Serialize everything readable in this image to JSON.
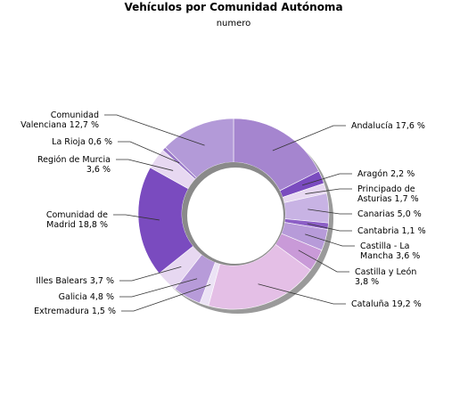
{
  "chart_data": {
    "type": "pie",
    "title": "Vehículos por Comunidad Autónoma",
    "subtitle": "numero",
    "slices": [
      {
        "label": "Andalucía 17,6 %",
        "value": 17.6,
        "color": "#a585cf"
      },
      {
        "label": "Aragón 2,2 %",
        "value": 2.2,
        "color": "#7a4bbf"
      },
      {
        "label": "Principado de Asturias 1,7 %",
        "value": 1.7,
        "color": "#e7d8f1"
      },
      {
        "label": "Canarias 5,0 %",
        "value": 5.0,
        "color": "#c8b3e4"
      },
      {
        "label": "Cantabria 1,1 %",
        "value": 1.1,
        "color": "#8c5fc6"
      },
      {
        "label": "Castilla - La Mancha 3,6 %",
        "value": 3.6,
        "color": "#b79bd9"
      },
      {
        "label": "Castilla y León 3,8 %",
        "value": 3.8,
        "color": "#c99ad8"
      },
      {
        "label": "Cataluña 19,2 %",
        "value": 19.2,
        "color": "#e4bfe6"
      },
      {
        "label": "Extremadura 1,5 %",
        "value": 1.5,
        "color": "#ece3f5"
      },
      {
        "label": "Galicia 4,8 %",
        "value": 4.8,
        "color": "#b79bd9"
      },
      {
        "label": "Illes Balears 3,7 %",
        "value": 3.7,
        "color": "#e7d8f1"
      },
      {
        "label": "Comunidad de Madrid 18,8 %",
        "value": 18.8,
        "color": "#7a4bbf"
      },
      {
        "label": "Región de Murcia 3,6 %",
        "value": 3.6,
        "color": "#e7d8f1"
      },
      {
        "label": "La Rioja 0,6 %",
        "value": 0.6,
        "color": "#9a78c9"
      },
      {
        "label": "Comunidad Valenciana 12,7 %",
        "value": 12.7,
        "color": "#b39ad8"
      }
    ]
  }
}
